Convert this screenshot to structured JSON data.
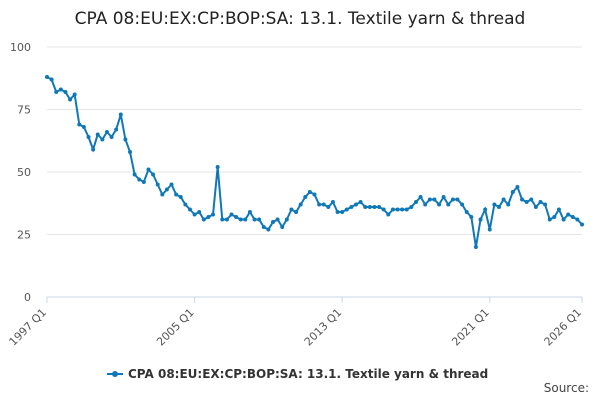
{
  "chart_data": {
    "type": "line",
    "title": "CPA 08:EU:EX:CP:BOP:SA: 13.1. Textile yarn & thread",
    "source_label": "Source:",
    "categories": [
      "1997 Q1",
      null,
      null,
      null,
      null,
      null,
      null,
      null,
      null,
      null,
      null,
      null,
      null,
      null,
      null,
      null,
      null,
      null,
      null,
      null,
      null,
      null,
      null,
      null,
      null,
      null,
      null,
      null,
      null,
      null,
      null,
      null,
      "2005 Q1",
      null,
      null,
      null,
      null,
      null,
      null,
      null,
      null,
      null,
      null,
      null,
      null,
      null,
      null,
      null,
      null,
      null,
      null,
      null,
      null,
      null,
      null,
      null,
      null,
      null,
      null,
      null,
      null,
      null,
      null,
      null,
      "2013 Q1",
      null,
      null,
      null,
      null,
      null,
      null,
      null,
      null,
      null,
      null,
      null,
      null,
      null,
      null,
      null,
      null,
      null,
      null,
      null,
      null,
      null,
      null,
      null,
      null,
      null,
      null,
      null,
      null,
      null,
      null,
      null,
      "2021 Q1",
      null,
      null,
      null,
      null,
      null,
      null,
      null,
      null,
      null,
      null,
      null,
      null,
      null,
      null,
      null,
      null,
      null,
      null,
      null,
      "2026 Q1"
    ],
    "series": [
      {
        "name": "CPA 08:EU:EX:CP:BOP:SA: 13.1. Textile yarn & thread",
        "color": "#0f78b8",
        "values": [
          88,
          87,
          82,
          83,
          82,
          79,
          81,
          69,
          68,
          64,
          59,
          65,
          63,
          66,
          64,
          67,
          73,
          63,
          58,
          49,
          47,
          46,
          51,
          49,
          45,
          41,
          43,
          45,
          41,
          40,
          37,
          35,
          33,
          34,
          31,
          32,
          33,
          52,
          31,
          31,
          33,
          32,
          31,
          31,
          34,
          31,
          31,
          28,
          27,
          30,
          31,
          28,
          31,
          35,
          34,
          37,
          40,
          42,
          41,
          37,
          37,
          36,
          38,
          34,
          34,
          35,
          36,
          37,
          38,
          36,
          36,
          36,
          36,
          35,
          33,
          35,
          35,
          35,
          35,
          36,
          38,
          40,
          37,
          39,
          39,
          37,
          40,
          37,
          39,
          39,
          37,
          34,
          32,
          20,
          31,
          35,
          27,
          37,
          36,
          39,
          37,
          42,
          44,
          39,
          38,
          39,
          36,
          38,
          37,
          31,
          32,
          35,
          31,
          33,
          32,
          31,
          29
        ]
      }
    ],
    "ylim": [
      0,
      100
    ],
    "yticks": [
      0,
      25,
      50,
      75,
      100
    ],
    "grid": true
  }
}
